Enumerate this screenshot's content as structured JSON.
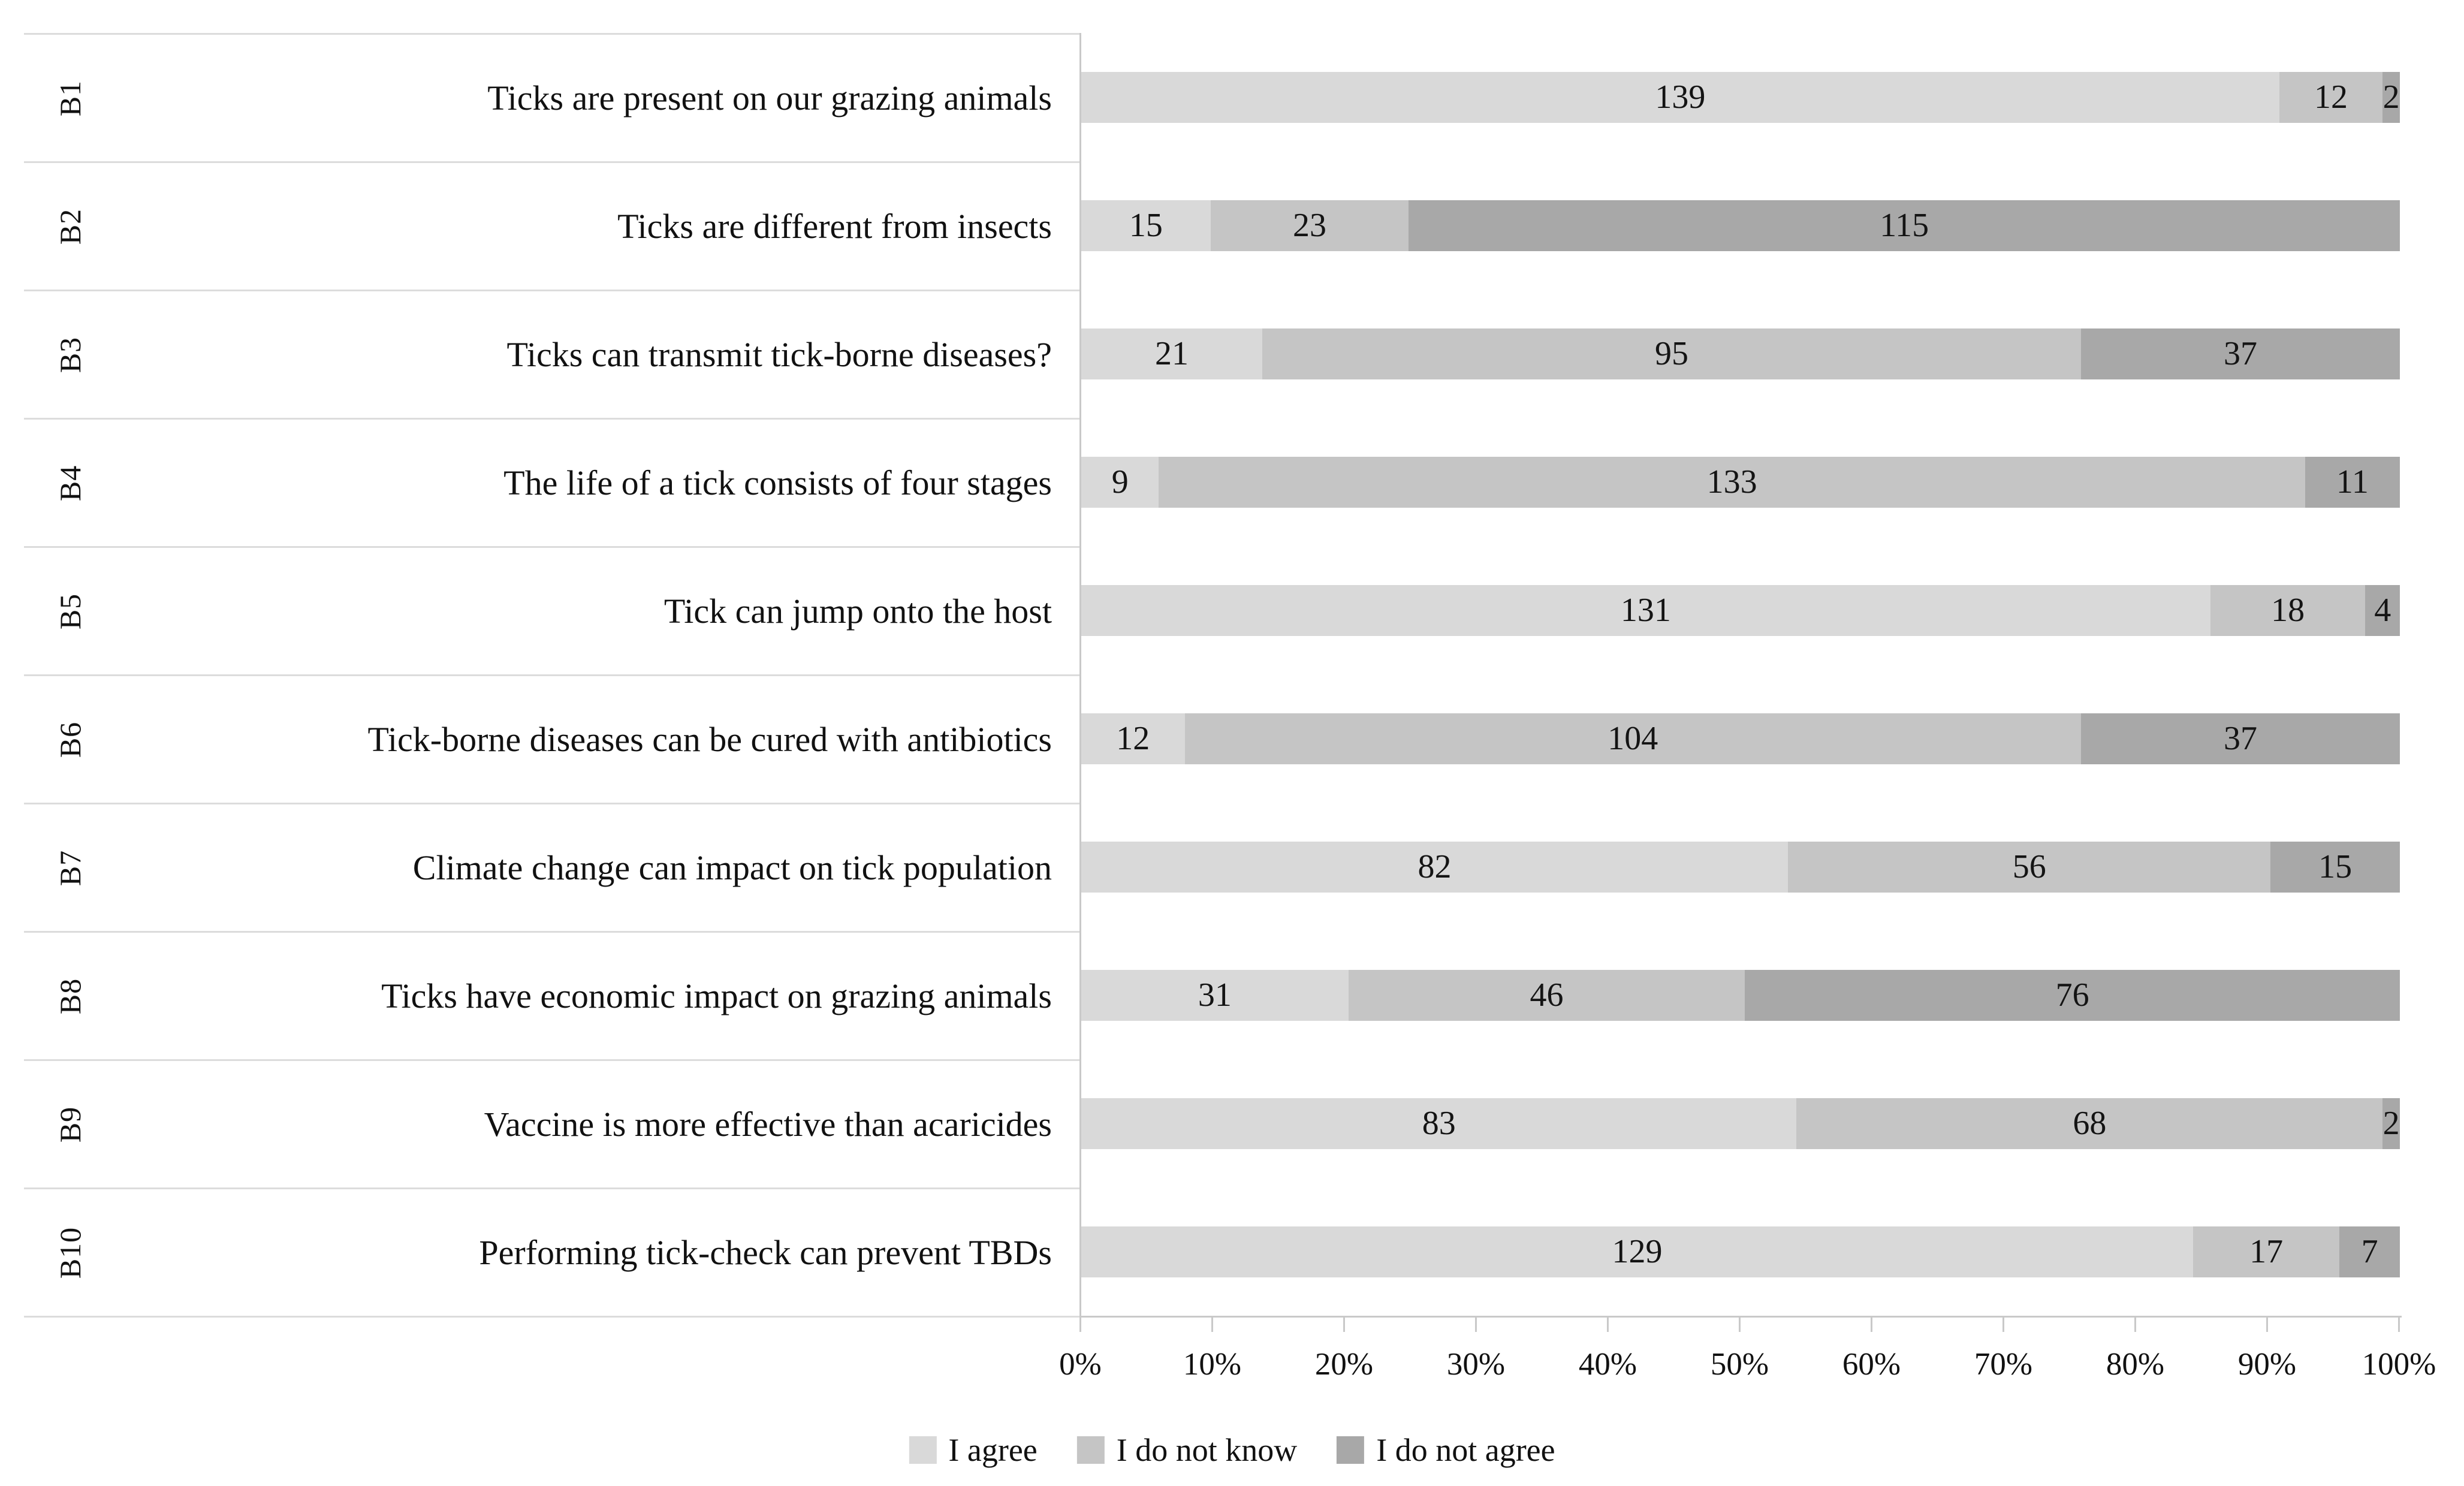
{
  "chart_data": {
    "type": "bar",
    "variant": "stacked-horizontal-100percent",
    "title": "",
    "total_per_row": 153,
    "categories": [
      {
        "id": "B1",
        "question": "Ticks are present on our grazing animals"
      },
      {
        "id": "B2",
        "question": "Ticks are different from insects"
      },
      {
        "id": "B3",
        "question": "Ticks can transmit tick-borne diseases?"
      },
      {
        "id": "B4",
        "question": "The life of a tick consists of four stages"
      },
      {
        "id": "B5",
        "question": "Tick can jump onto the host"
      },
      {
        "id": "B6",
        "question": "Tick-borne diseases can be cured with antibiotics"
      },
      {
        "id": "B7",
        "question": "Climate change can impact on tick population"
      },
      {
        "id": "B8",
        "question": "Ticks have economic impact on grazing animals"
      },
      {
        "id": "B9",
        "question": "Vaccine is more effective than acaricides"
      },
      {
        "id": "B10",
        "question": "Performing tick-check can prevent TBDs"
      }
    ],
    "series": [
      {
        "name": "I agree",
        "color": "#d9d9d9",
        "values": [
          139,
          15,
          21,
          9,
          131,
          12,
          82,
          31,
          83,
          129
        ]
      },
      {
        "name": "I do not know",
        "color": "#c5c5c5",
        "values": [
          12,
          23,
          95,
          133,
          18,
          104,
          56,
          46,
          68,
          17
        ]
      },
      {
        "name": "I do not agree",
        "color": "#a8a8a8",
        "values": [
          2,
          115,
          37,
          11,
          4,
          37,
          15,
          76,
          2,
          7
        ]
      }
    ],
    "x_axis": {
      "min": 0,
      "max": 100,
      "tick_labels": [
        "0%",
        "10%",
        "20%",
        "30%",
        "40%",
        "50%",
        "60%",
        "70%",
        "80%",
        "90%",
        "100%"
      ],
      "gridlines": false
    },
    "legend": {
      "position": "bottom",
      "entries": [
        "I agree",
        "I do not know",
        "I do not agree"
      ]
    },
    "colors": {
      "axis_line": "#c9c9c9",
      "row_separator": "#dcdcdc",
      "text": "#111111"
    }
  }
}
